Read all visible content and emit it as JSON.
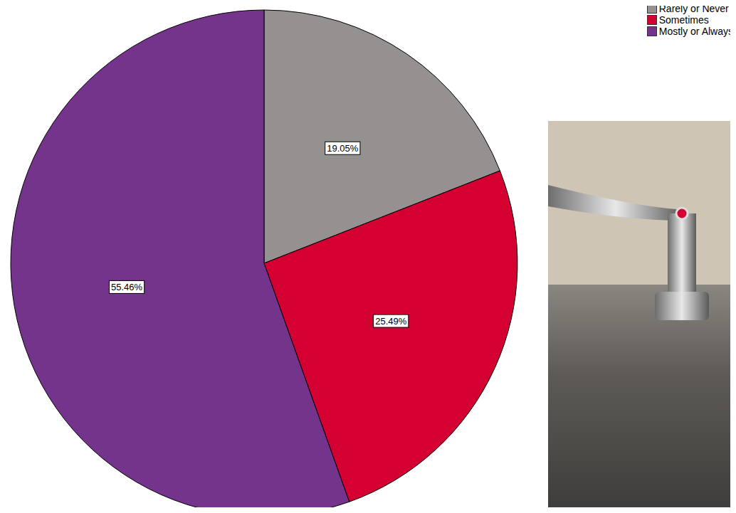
{
  "chart_data": {
    "type": "pie",
    "categories": [
      "Rarely or Never",
      "Sometimes",
      "Mostly or Always"
    ],
    "values": [
      19.05,
      25.49,
      55.46
    ],
    "value_labels": [
      "19.05%",
      "25.49%",
      "55.46%"
    ],
    "colors": [
      "#959190",
      "#d50032",
      "#74348b"
    ],
    "data_labels": true,
    "legend": "upper right"
  }
}
